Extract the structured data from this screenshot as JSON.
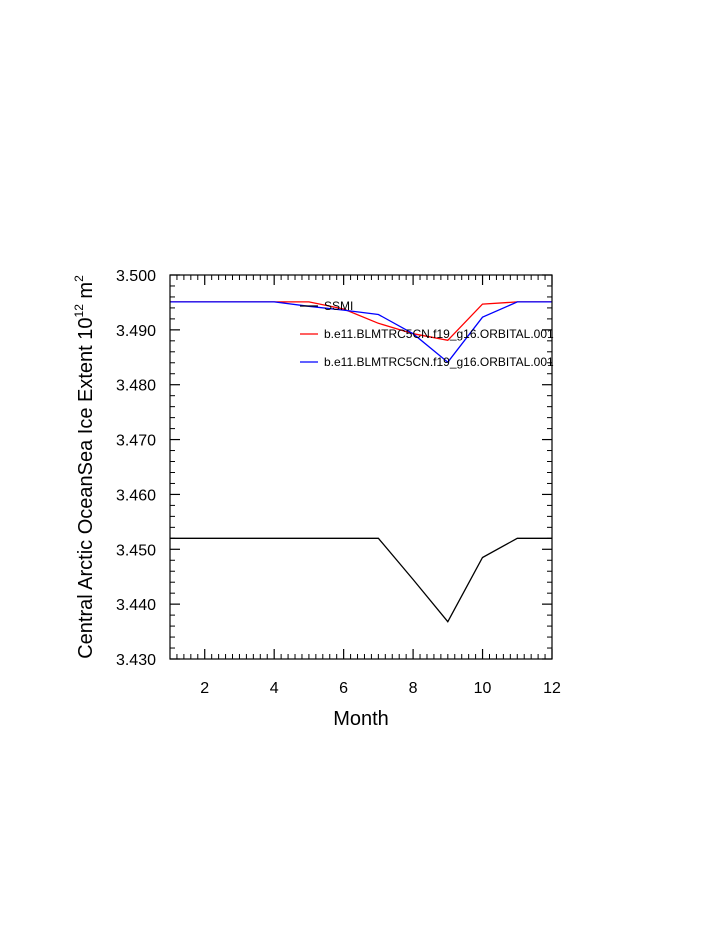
{
  "chart_data": {
    "type": "line",
    "xlabel": "Month",
    "ylabel_main": "Central Arctic OceanSea Ice Extent 10",
    "ylabel_sup1": "12",
    "ylabel_mid": " m",
    "ylabel_sup2": "2",
    "xlim": [
      1,
      12
    ],
    "ylim": [
      3.43,
      3.5
    ],
    "xticks": [
      {
        "value": 2,
        "label": "2"
      },
      {
        "value": 4,
        "label": "4"
      },
      {
        "value": 6,
        "label": "6"
      },
      {
        "value": 8,
        "label": "8"
      },
      {
        "value": 10,
        "label": "10"
      },
      {
        "value": 12,
        "label": "12"
      }
    ],
    "yticks": [
      {
        "value": 3.43,
        "label": "3.430"
      },
      {
        "value": 3.44,
        "label": "3.440"
      },
      {
        "value": 3.45,
        "label": "3.450"
      },
      {
        "value": 3.46,
        "label": "3.460"
      },
      {
        "value": 3.47,
        "label": "3.470"
      },
      {
        "value": 3.48,
        "label": "3.480"
      },
      {
        "value": 3.49,
        "label": "3.490"
      },
      {
        "value": 3.5,
        "label": "3.500"
      }
    ],
    "x": [
      1,
      2,
      3,
      4,
      5,
      6,
      7,
      8,
      9,
      10,
      11,
      12
    ],
    "series": [
      {
        "name": "SSMI",
        "color": "#000000",
        "values": [
          3.452,
          3.452,
          3.452,
          3.452,
          3.452,
          3.452,
          3.452,
          3.4445,
          3.4368,
          3.4485,
          3.452,
          3.452
        ]
      },
      {
        "name": "b.e11.BLMTRC5CN.f19_g16.ORBITAL.001",
        "color": "#ff0000",
        "values": [
          3.4951,
          3.4951,
          3.4951,
          3.4951,
          3.4951,
          3.4938,
          3.4912,
          3.4893,
          3.4881,
          3.4947,
          3.4951,
          3.4951
        ]
      },
      {
        "name": "b.e11.BLMTRC5CN.f19_g16.ORBITAL.001",
        "color": "#0000ff",
        "values": [
          3.4951,
          3.4951,
          3.4951,
          3.4951,
          3.4943,
          3.4936,
          3.4928,
          3.4893,
          3.4841,
          3.4923,
          3.4951,
          3.4951
        ]
      }
    ],
    "legend_position": "top-right",
    "grid": false
  }
}
